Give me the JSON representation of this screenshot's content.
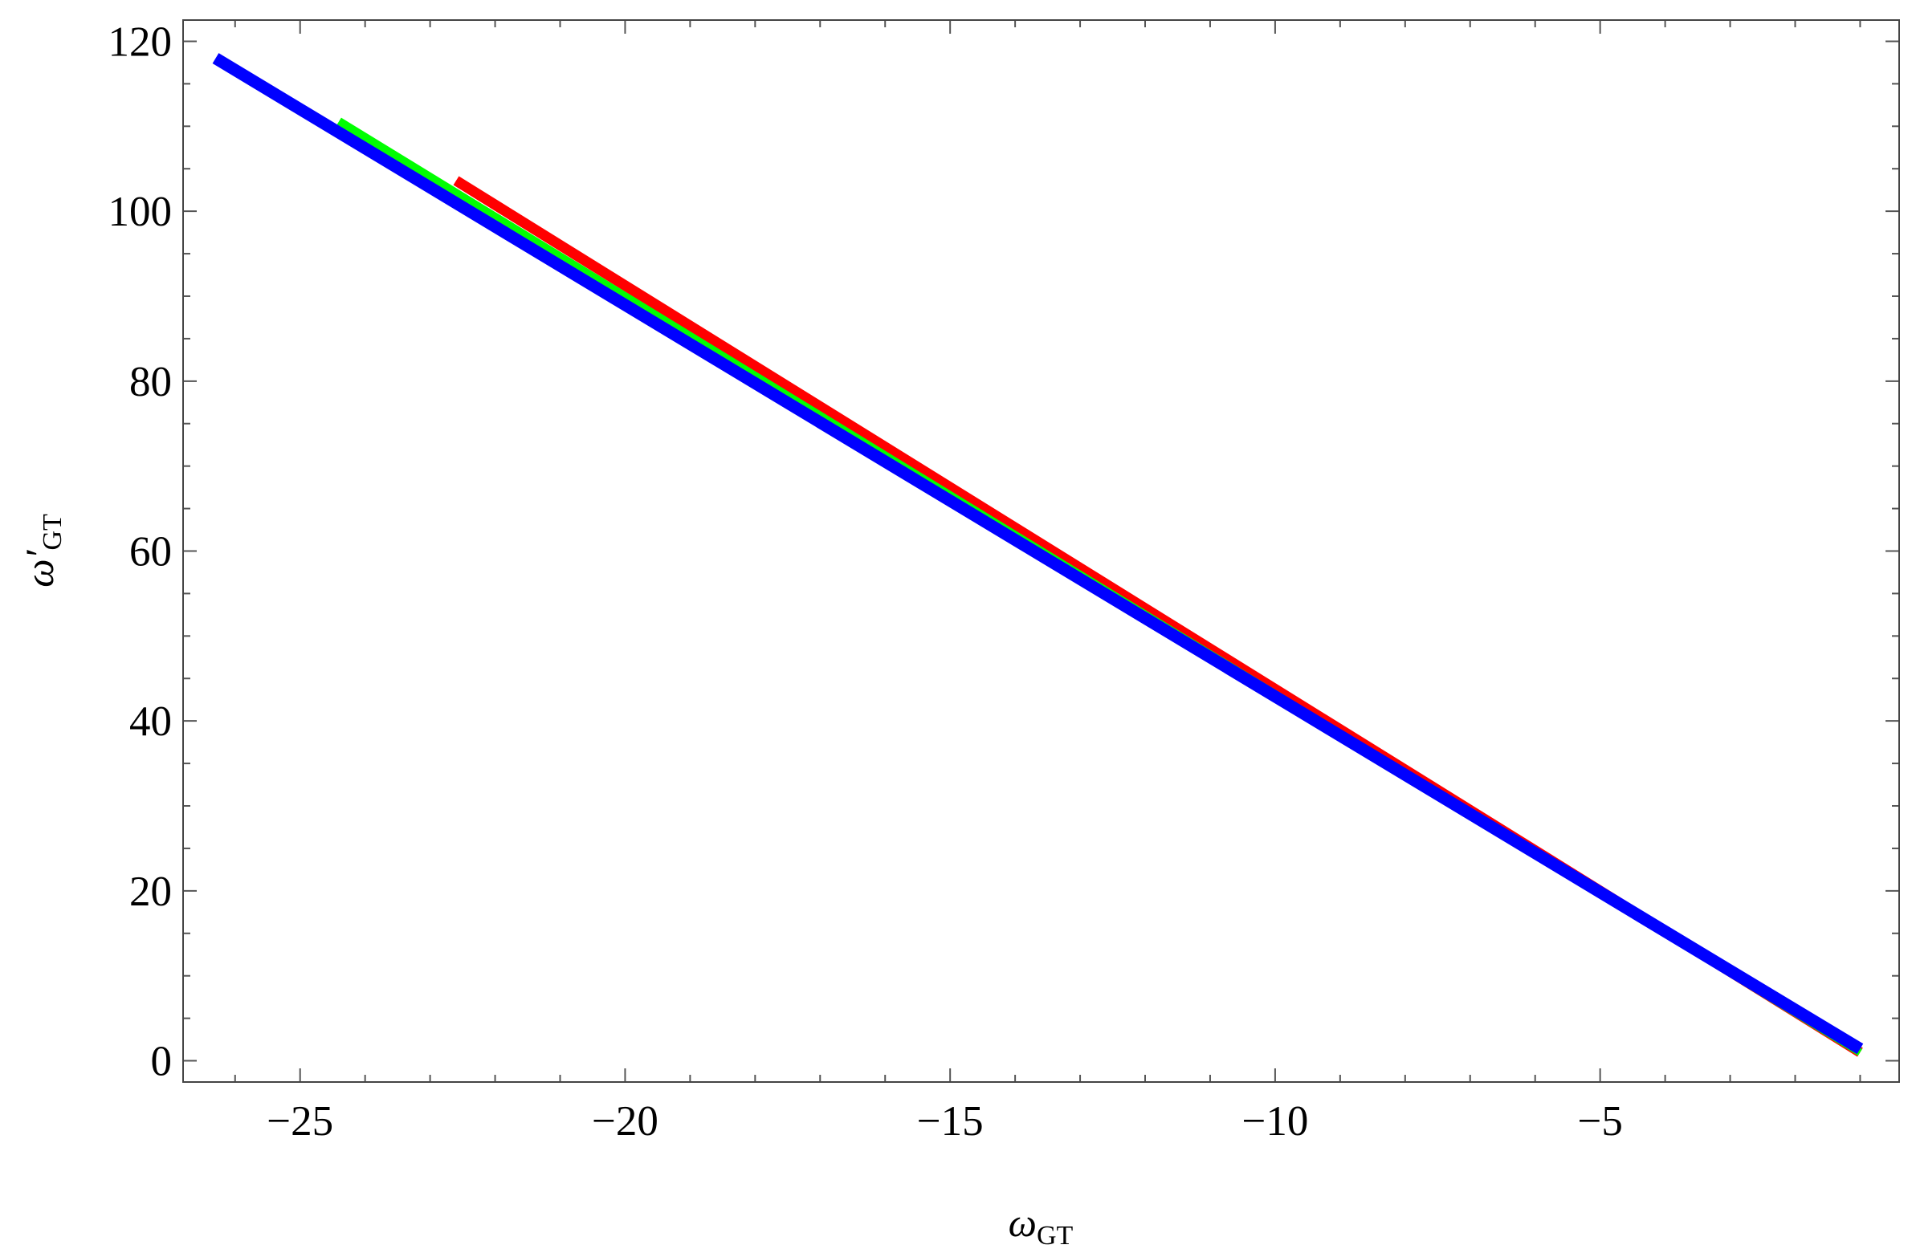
{
  "chart_data": {
    "type": "line",
    "xlabel": {
      "main": "ω",
      "sub": "GT"
    },
    "ylabel": {
      "main": "ω′",
      "sub": "GT"
    },
    "xlim": [
      -26.8,
      -0.4
    ],
    "ylim": [
      -2.5,
      122.5
    ],
    "x_ticks": [
      -25,
      -20,
      -15,
      -10,
      -5
    ],
    "x_tick_labels": [
      "−25",
      "−20",
      "−15",
      "−10",
      "−5"
    ],
    "y_ticks": [
      0,
      20,
      40,
      60,
      80,
      100,
      120
    ],
    "y_tick_labels": [
      "0",
      "20",
      "40",
      "60",
      "80",
      "100",
      "120"
    ],
    "x_minor_step": 1,
    "y_minor_step": 5,
    "grid": false,
    "legend": "none",
    "series": [
      {
        "color": "#ff0000",
        "width": 13,
        "x": [
          -22.6,
          -1.0
        ],
        "y": [
          103.6,
          1.0
        ]
      },
      {
        "color": "#00ff00",
        "width": 10,
        "x": [
          -24.4,
          -1.0
        ],
        "y": [
          110.6,
          1.0
        ]
      },
      {
        "color": "#0000ff",
        "width": 15,
        "x": [
          -26.3,
          -1.0
        ],
        "y": [
          118.0,
          1.4
        ]
      }
    ]
  }
}
